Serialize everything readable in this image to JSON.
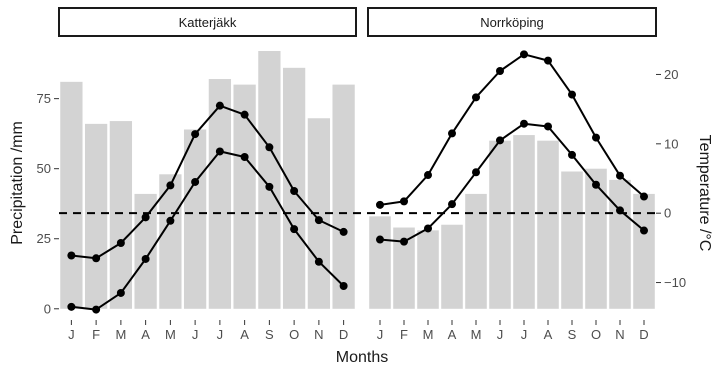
{
  "chart_data": {
    "type": "bar-line",
    "xlabel": "Months",
    "ylabel_left": "Precipitation /mm",
    "ylabel_right": "Temperature /°C",
    "months": [
      "J",
      "F",
      "M",
      "A",
      "M",
      "J",
      "J",
      "A",
      "S",
      "O",
      "N",
      "D"
    ],
    "precip_ticks": [
      "0",
      "25",
      "50",
      "75"
    ],
    "temp_ticks": [
      "−10",
      "0",
      "10",
      "20"
    ],
    "ylim_precip": [
      -4,
      97
    ],
    "ylim_temp": [
      -15.4,
      25.4
    ],
    "reference_line_temp": 0,
    "colors": {
      "bar": "#d3d3d3",
      "line": "#000000",
      "reference": "#000000",
      "strip_border": "#1a1a1a"
    },
    "panels": [
      {
        "name": "Katterjäkk",
        "precipitation": [
          81,
          66,
          67,
          41,
          48,
          64,
          82,
          80,
          92,
          86,
          68,
          80
        ],
        "temp_max": [
          -6.1,
          -6.5,
          -4.3,
          -0.6,
          4.0,
          11.4,
          15.5,
          14.2,
          9.5,
          3.2,
          -1.0,
          -2.7
        ],
        "temp_min": [
          -13.5,
          -13.9,
          -11.5,
          -6.6,
          -1.1,
          4.5,
          8.9,
          8.1,
          3.8,
          -2.3,
          -7.0,
          -10.5
        ]
      },
      {
        "name": "Norrköping",
        "precipitation": [
          33,
          29,
          28,
          30,
          41,
          60,
          62,
          60,
          49,
          50,
          46,
          41
        ],
        "temp_max": [
          1.2,
          1.7,
          5.5,
          11.5,
          16.7,
          20.5,
          22.9,
          22.0,
          17.1,
          10.9,
          5.4,
          2.4
        ],
        "temp_min": [
          -3.8,
          -4.1,
          -2.2,
          1.3,
          5.9,
          10.5,
          12.9,
          12.5,
          8.4,
          4.1,
          0.4,
          -2.5
        ]
      }
    ]
  }
}
